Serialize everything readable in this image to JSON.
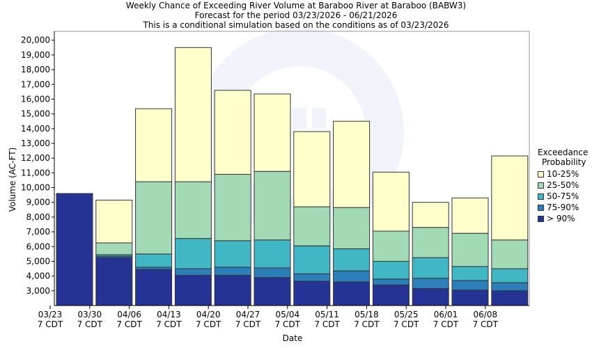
{
  "chart_data": {
    "type": "bar",
    "stacked": true,
    "title": "Weekly Chance of Exceeding River Volume at Baraboo River at Baraboo (BABW3)",
    "subtitle_1": "Forecast for the period 03/23/2026 - 06/21/2026",
    "subtitle_2": "This is a conditional simulation based on the conditions as of 03/23/2026",
    "xlabel": "Date",
    "ylabel": "Volume (AC-FT)",
    "ylim": [
      2000,
      20600
    ],
    "y_ticks": [
      3000,
      4000,
      5000,
      6000,
      7000,
      8000,
      9000,
      10000,
      11000,
      12000,
      13000,
      14000,
      15000,
      16000,
      17000,
      18000,
      19000,
      20000
    ],
    "y_tick_labels": [
      "3,000",
      "4,000",
      "5,000",
      "6,000",
      "7,000",
      "8,000",
      "9,000",
      "10,000",
      "11,000",
      "12,000",
      "13,000",
      "14,000",
      "15,000",
      "16,000",
      "17,000",
      "18,000",
      "19,000",
      "20,000"
    ],
    "x_tick_labels": [
      {
        "date": "03/23",
        "tz": "7 CDT"
      },
      {
        "date": "03/30",
        "tz": "7 CDT"
      },
      {
        "date": "04/06",
        "tz": "7 CDT"
      },
      {
        "date": "04/13",
        "tz": "7 CDT"
      },
      {
        "date": "04/20",
        "tz": "7 CDT"
      },
      {
        "date": "04/27",
        "tz": "7 CDT"
      },
      {
        "date": "05/04",
        "tz": "7 CDT"
      },
      {
        "date": "05/11",
        "tz": "7 CDT"
      },
      {
        "date": "05/18",
        "tz": "7 CDT"
      },
      {
        "date": "05/25",
        "tz": "7 CDT"
      },
      {
        "date": "06/01",
        "tz": "7 CDT"
      },
      {
        "date": "06/08",
        "tz": "7 CDT"
      }
    ],
    "bars": [
      {
        "week": "03/23",
        "gt90": 9600,
        "p75_90": 9600,
        "p50_75": 9600,
        "p25_50": 9600,
        "p10_25": 9600
      },
      {
        "week": "03/30",
        "gt90": 5250,
        "p75_90": 5350,
        "p50_75": 5450,
        "p25_50": 6250,
        "p10_25": 9150
      },
      {
        "week": "04/06",
        "gt90": 4450,
        "p75_90": 4600,
        "p50_75": 5500,
        "p25_50": 10400,
        "p10_25": 15350
      },
      {
        "week": "04/13",
        "gt90": 4050,
        "p75_90": 4500,
        "p50_75": 6550,
        "p25_50": 10400,
        "p10_25": 19500
      },
      {
        "week": "04/20",
        "gt90": 4050,
        "p75_90": 4600,
        "p50_75": 6400,
        "p25_50": 10900,
        "p10_25": 16600
      },
      {
        "week": "04/27",
        "gt90": 3900,
        "p75_90": 4550,
        "p50_75": 6450,
        "p25_50": 11100,
        "p10_25": 16350
      },
      {
        "week": "05/04",
        "gt90": 3650,
        "p75_90": 4150,
        "p50_75": 6050,
        "p25_50": 8700,
        "p10_25": 13800
      },
      {
        "week": "05/11",
        "gt90": 3600,
        "p75_90": 4350,
        "p50_75": 5850,
        "p25_50": 8650,
        "p10_25": 14500
      },
      {
        "week": "05/18",
        "gt90": 3400,
        "p75_90": 3800,
        "p50_75": 5000,
        "p25_50": 7050,
        "p10_25": 11050
      },
      {
        "week": "05/25",
        "gt90": 3150,
        "p75_90": 3850,
        "p50_75": 5250,
        "p25_50": 7300,
        "p10_25": 9000
      },
      {
        "week": "06/01",
        "gt90": 3050,
        "p75_90": 3700,
        "p50_75": 4650,
        "p25_50": 6900,
        "p10_25": 9300
      },
      {
        "week": "06/08",
        "gt90": 3000,
        "p75_90": 3550,
        "p50_75": 4500,
        "p25_50": 6450,
        "p10_25": 12150
      }
    ],
    "legend": {
      "title_line1": "Exceedance",
      "title_line2": "Probability",
      "placement": "right",
      "items": [
        {
          "key": "p10_25",
          "label": "10-25%",
          "color": "#ffffcc"
        },
        {
          "key": "p25_50",
          "label": "25-50%",
          "color": "#a1dab4"
        },
        {
          "key": "p50_75",
          "label": "50-75%",
          "color": "#41b6c4"
        },
        {
          "key": "p75_90",
          "label": "75-90%",
          "color": "#2c7fb8"
        },
        {
          "key": "gt90",
          "label": "> 90%",
          "color": "#253494"
        }
      ]
    },
    "grid": false
  }
}
